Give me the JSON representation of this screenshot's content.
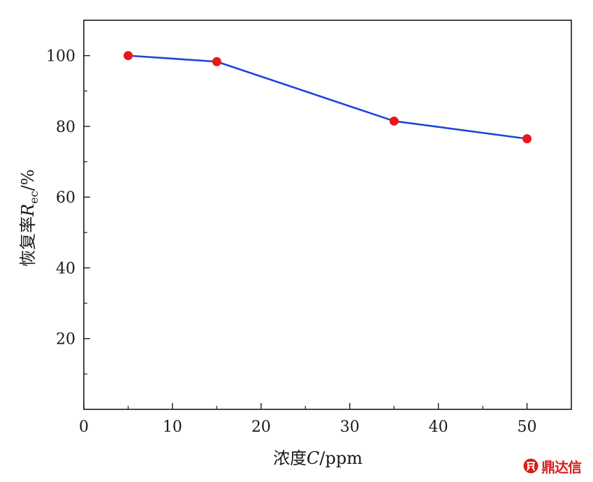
{
  "chart_data": {
    "type": "line",
    "xlabel": {
      "prefix": "浓度",
      "variable": "C",
      "unit": "/ppm"
    },
    "ylabel": {
      "prefix": "恢复率",
      "variable": "R",
      "subscript": "ec",
      "unit": "/%"
    },
    "xlim": [
      0,
      55
    ],
    "ylim": [
      0,
      110
    ],
    "x_ticks": [
      0,
      10,
      20,
      30,
      40,
      50
    ],
    "y_ticks": [
      20,
      40,
      60,
      80,
      100
    ],
    "x_minor_ticks": [
      5,
      15,
      25,
      35,
      45
    ],
    "y_minor_ticks": [
      10,
      30,
      50,
      70,
      90
    ],
    "grid": false,
    "series": [
      {
        "x": [
          5,
          15,
          35,
          50
        ],
        "y": [
          100,
          98.3,
          81.5,
          76.5
        ],
        "line_color": "#1f44d6",
        "marker_color": "#e81818"
      }
    ]
  },
  "watermark": {
    "text": "鼎达信",
    "icon": "logo-seal-icon",
    "color": "#d81e1e"
  }
}
